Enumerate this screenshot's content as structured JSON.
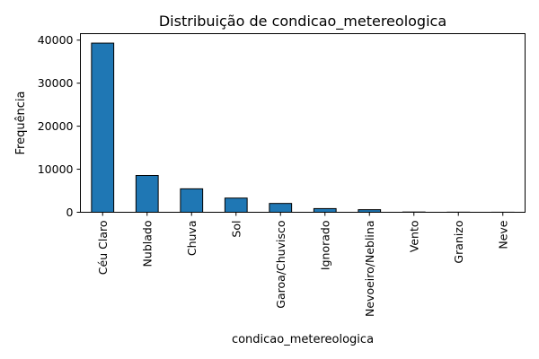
{
  "chart_data": {
    "type": "bar",
    "title": "Distribuição de condicao_metereologica",
    "xlabel": "condicao_metereologica",
    "ylabel": "Frequência",
    "categories": [
      "Céu Claro",
      "Nublado",
      "Chuva",
      "Sol",
      "Garoa/Chuvisco",
      "Ignorado",
      "Nevoeiro/Neblina",
      "Vento",
      "Granizo",
      "Neve"
    ],
    "values": [
      39300,
      8550,
      5450,
      3300,
      2050,
      850,
      600,
      60,
      30,
      15
    ],
    "ylim": [
      0,
      41500
    ],
    "yticks": [
      0,
      10000,
      20000,
      30000,
      40000
    ],
    "ytick_labels": [
      "0",
      "10000",
      "20000",
      "30000",
      "40000"
    ],
    "bar_color": "#1f77b4",
    "edge_color": "#000000",
    "grid": false,
    "legend": false
  }
}
